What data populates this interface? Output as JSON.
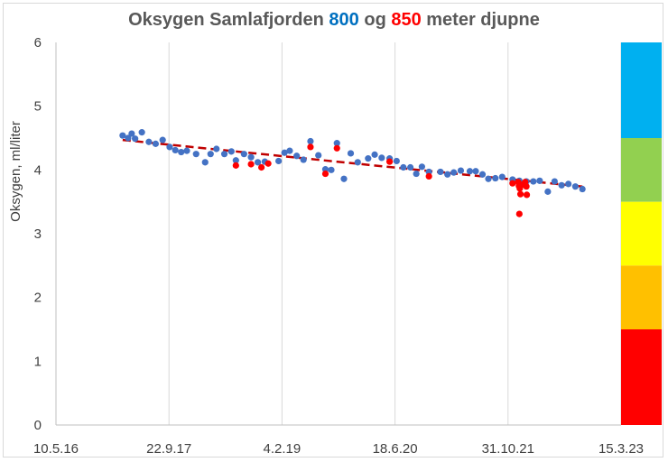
{
  "chart_data": {
    "type": "scatter",
    "title_parts": [
      {
        "text": "Oksygen Samlafjorden ",
        "color": "#595959"
      },
      {
        "text": "800",
        "color": "#0070c0"
      },
      {
        "text": " og ",
        "color": "#595959"
      },
      {
        "text": "850",
        "color": "#ff0000"
      },
      {
        "text": " meter djupne",
        "color": "#595959"
      }
    ],
    "xlabel": "",
    "ylabel": "Oksygen, ml/liter",
    "xlim": [
      "2016-05-10",
      "2023-03-15"
    ],
    "ylim": [
      0,
      6
    ],
    "x_ticks": [
      "10.5.16",
      "22.9.17",
      "4.2.19",
      "18.6.20",
      "31.10.21",
      "15.3.23"
    ],
    "y_ticks": [
      0,
      1,
      2,
      3,
      4,
      5,
      6
    ],
    "grid": {
      "vertical": true,
      "horizontal": false
    },
    "series": [
      {
        "color": "#4472c4",
        "points": [
          [
            "2017-03-01",
            4.54
          ],
          [
            "2017-03-25",
            4.5
          ],
          [
            "2017-04-10",
            4.57
          ],
          [
            "2017-04-25",
            4.49
          ],
          [
            "2017-05-25",
            4.59
          ],
          [
            "2017-06-25",
            4.44
          ],
          [
            "2017-07-25",
            4.41
          ],
          [
            "2017-08-25",
            4.47
          ],
          [
            "2017-09-25",
            4.36
          ],
          [
            "2017-10-20",
            4.31
          ],
          [
            "2017-11-15",
            4.28
          ],
          [
            "2017-12-10",
            4.3
          ],
          [
            "2018-01-20",
            4.25
          ],
          [
            "2018-03-01",
            4.12
          ],
          [
            "2018-03-25",
            4.25
          ],
          [
            "2018-04-20",
            4.33
          ],
          [
            "2018-05-25",
            4.25
          ],
          [
            "2018-06-25",
            4.29
          ],
          [
            "2018-07-15",
            4.15
          ],
          [
            "2018-08-20",
            4.25
          ],
          [
            "2018-09-20",
            4.2
          ],
          [
            "2018-10-20",
            4.12
          ],
          [
            "2018-11-20",
            4.13
          ],
          [
            "2019-01-20",
            4.14
          ],
          [
            "2019-02-15",
            4.27
          ],
          [
            "2019-03-10",
            4.3
          ],
          [
            "2019-04-10",
            4.22
          ],
          [
            "2019-05-10",
            4.16
          ],
          [
            "2019-06-10",
            4.45
          ],
          [
            "2019-07-15",
            4.23
          ],
          [
            "2019-08-15",
            4.01
          ],
          [
            "2019-09-10",
            4.0
          ],
          [
            "2019-10-05",
            4.42
          ],
          [
            "2019-11-05",
            3.86
          ],
          [
            "2019-12-05",
            4.26
          ],
          [
            "2020-01-05",
            4.12
          ],
          [
            "2020-02-20",
            4.18
          ],
          [
            "2020-03-20",
            4.24
          ],
          [
            "2020-04-20",
            4.19
          ],
          [
            "2020-05-25",
            4.18
          ],
          [
            "2020-06-25",
            4.14
          ],
          [
            "2020-07-25",
            4.04
          ],
          [
            "2020-08-25",
            4.04
          ],
          [
            "2020-09-20",
            3.94
          ],
          [
            "2020-10-15",
            4.05
          ],
          [
            "2020-11-15",
            3.97
          ],
          [
            "2021-01-05",
            3.97
          ],
          [
            "2021-02-05",
            3.93
          ],
          [
            "2021-03-05",
            3.96
          ],
          [
            "2021-04-05",
            3.99
          ],
          [
            "2021-05-15",
            3.98
          ],
          [
            "2021-06-10",
            3.98
          ],
          [
            "2021-07-10",
            3.93
          ],
          [
            "2021-08-05",
            3.86
          ],
          [
            "2021-09-05",
            3.87
          ],
          [
            "2021-10-05",
            3.89
          ],
          [
            "2021-11-20",
            3.85
          ],
          [
            "2021-12-20",
            3.83
          ],
          [
            "2022-01-20",
            3.82
          ],
          [
            "2022-02-20",
            3.82
          ],
          [
            "2022-03-20",
            3.83
          ],
          [
            "2022-04-25",
            3.66
          ],
          [
            "2022-05-25",
            3.82
          ],
          [
            "2022-06-25",
            3.76
          ],
          [
            "2022-07-25",
            3.78
          ],
          [
            "2022-08-25",
            3.74
          ],
          [
            "2022-09-25",
            3.7
          ]
        ]
      },
      {
        "color": "#ff0000",
        "points": [
          [
            "2018-07-15",
            4.07
          ],
          [
            "2018-09-20",
            4.09
          ],
          [
            "2018-11-05",
            4.04
          ],
          [
            "2018-12-05",
            4.1
          ],
          [
            "2019-06-10",
            4.36
          ],
          [
            "2019-08-15",
            3.94
          ],
          [
            "2019-10-05",
            4.34
          ],
          [
            "2020-05-25",
            4.13
          ],
          [
            "2020-11-15",
            3.9
          ],
          [
            "2021-11-20",
            3.79
          ],
          [
            "2021-12-15",
            3.81
          ],
          [
            "2021-12-18",
            3.75
          ],
          [
            "2021-12-22",
            3.71
          ],
          [
            "2021-12-25",
            3.62
          ],
          [
            "2021-12-20",
            3.31
          ],
          [
            "2022-01-05",
            3.77
          ],
          [
            "2022-01-15",
            3.81
          ],
          [
            "2022-01-20",
            3.74
          ],
          [
            "2022-01-22",
            3.61
          ]
        ]
      }
    ],
    "trendline": {
      "color": "#c00000",
      "style": "dashed",
      "from": [
        "2017-03-01",
        4.47
      ],
      "to": [
        "2022-09-25",
        3.74
      ]
    },
    "rating_scale": [
      {
        "from": 4.5,
        "to": 6,
        "color": "#00b0f0"
      },
      {
        "from": 3.5,
        "to": 4.5,
        "color": "#92d050"
      },
      {
        "from": 2.5,
        "to": 3.5,
        "color": "#ffff00"
      },
      {
        "from": 1.5,
        "to": 2.5,
        "color": "#ffc000"
      },
      {
        "from": 0,
        "to": 1.5,
        "color": "#ff0000"
      }
    ]
  }
}
